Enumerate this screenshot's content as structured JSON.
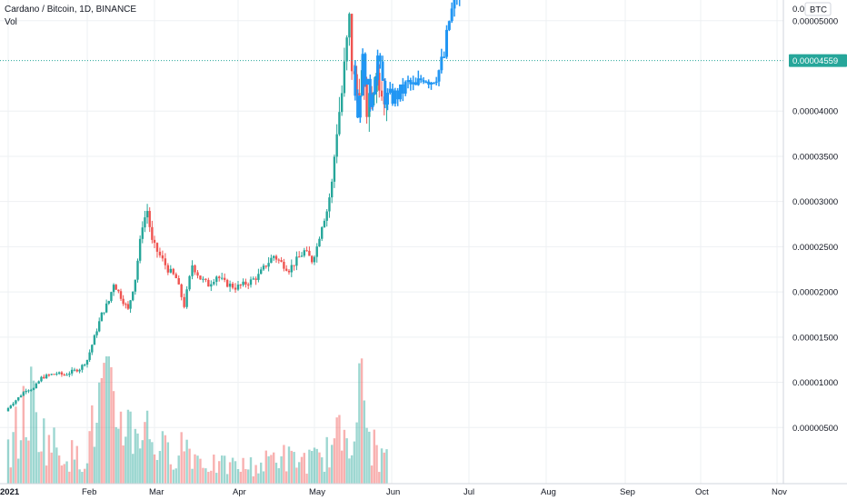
{
  "header": {
    "title": "Cardano / Bitcoin, 1D, BINANCE",
    "volume_label": "Vol"
  },
  "colors": {
    "up": "#26a69a",
    "down": "#ef5350",
    "projection": "#2196f3",
    "price_line": "#26a69a",
    "grid": "#eef0f3",
    "text": "#131722"
  },
  "chart_data": {
    "type": "candlestick",
    "symbol": "Cardano / Bitcoin",
    "interval": "1D",
    "exchange": "BINANCE",
    "currency_badge": "BTC",
    "current_price": 4.559e-05,
    "current_price_label": "0.00004559",
    "y_ticks": [
      "0.00000500",
      "0.00001000",
      "0.00001500",
      "0.00002000",
      "0.00002500",
      "0.00003000",
      "0.00003500",
      "0.00004000",
      "0.00005000"
    ],
    "x_ticks": [
      {
        "label": "2021",
        "date": "2021-01-01",
        "bold": true
      },
      {
        "label": "Feb",
        "date": "2021-02-01",
        "bold": false
      },
      {
        "label": "Mar",
        "date": "2021-03-01",
        "bold": false
      },
      {
        "label": "Apr",
        "date": "2021-04-01",
        "bold": false
      },
      {
        "label": "May",
        "date": "2021-05-01",
        "bold": false
      },
      {
        "label": "Jun",
        "date": "2021-06-01",
        "bold": false
      },
      {
        "label": "Jul",
        "date": "2021-07-01",
        "bold": false
      },
      {
        "label": "Aug",
        "date": "2021-08-01",
        "bold": false
      },
      {
        "label": "Sep",
        "date": "2021-09-01",
        "bold": false
      },
      {
        "label": "Oct",
        "date": "2021-10-01",
        "bold": false
      },
      {
        "label": "Nov",
        "date": "2021-11-01",
        "bold": false
      }
    ],
    "ylim": [
      0,
      5.35e-05
    ],
    "grid": true,
    "price_path": [
      [
        "2021-01-01",
        6.8e-06
      ],
      [
        "2021-01-03",
        7.5e-06
      ],
      [
        "2021-01-06",
        8.3e-06
      ],
      [
        "2021-01-09",
        9.2e-06
      ],
      [
        "2021-01-12",
        9.3e-06
      ],
      [
        "2021-01-15",
        1.05e-05
      ],
      [
        "2021-01-18",
        1.08e-05
      ],
      [
        "2021-01-21",
        1.1e-05
      ],
      [
        "2021-01-24",
        1.08e-05
      ],
      [
        "2021-01-27",
        1.12e-05
      ],
      [
        "2021-01-30",
        1.15e-05
      ],
      [
        "2021-02-02",
        1.25e-05
      ],
      [
        "2021-02-05",
        1.5e-05
      ],
      [
        "2021-02-08",
        1.75e-05
      ],
      [
        "2021-02-11",
        1.9e-05
      ],
      [
        "2021-02-13",
        2.1e-05
      ],
      [
        "2021-02-16",
        1.95e-05
      ],
      [
        "2021-02-19",
        1.8e-05
      ],
      [
        "2021-02-22",
        2.15e-05
      ],
      [
        "2021-02-25",
        2.75e-05
      ],
      [
        "2021-02-27",
        2.9e-05
      ],
      [
        "2021-03-01",
        2.55e-05
      ],
      [
        "2021-03-04",
        2.4e-05
      ],
      [
        "2021-03-07",
        2.25e-05
      ],
      [
        "2021-03-10",
        2.15e-05
      ],
      [
        "2021-03-13",
        1.85e-05
      ],
      [
        "2021-03-16",
        2.3e-05
      ],
      [
        "2021-03-19",
        2.15e-05
      ],
      [
        "2021-03-22",
        2.08e-05
      ],
      [
        "2021-03-25",
        2.18e-05
      ],
      [
        "2021-03-28",
        2.1e-05
      ],
      [
        "2021-04-01",
        2.05e-05
      ],
      [
        "2021-04-04",
        2.08e-05
      ],
      [
        "2021-04-07",
        2.12e-05
      ],
      [
        "2021-04-10",
        2.18e-05
      ],
      [
        "2021-04-13",
        2.3e-05
      ],
      [
        "2021-04-16",
        2.4e-05
      ],
      [
        "2021-04-19",
        2.32e-05
      ],
      [
        "2021-04-22",
        2.25e-05
      ],
      [
        "2021-04-25",
        2.35e-05
      ],
      [
        "2021-04-28",
        2.45e-05
      ],
      [
        "2021-05-01",
        2.35e-05
      ],
      [
        "2021-05-03",
        2.5e-05
      ],
      [
        "2021-05-05",
        2.75e-05
      ],
      [
        "2021-05-07",
        2.9e-05
      ],
      [
        "2021-05-09",
        3.2e-05
      ],
      [
        "2021-05-11",
        3.8e-05
      ],
      [
        "2021-05-13",
        4.2e-05
      ],
      [
        "2021-05-15",
        4.75e-05
      ],
      [
        "2021-05-16",
        5e-05
      ],
      [
        "2021-05-17",
        4.5e-05
      ],
      [
        "2021-05-19",
        4.2e-05
      ],
      [
        "2021-05-21",
        4.4e-05
      ],
      [
        "2021-05-23",
        4e-05
      ],
      [
        "2021-05-25",
        4.2e-05
      ],
      [
        "2021-05-27",
        4.4e-05
      ],
      [
        "2021-05-30",
        4.2e-05
      ]
    ],
    "projection_path": [
      [
        "2021-05-17",
        4.5e-05
      ],
      [
        "2021-05-19",
        3.95e-05
      ],
      [
        "2021-05-21",
        4.55e-05
      ],
      [
        "2021-05-24",
        4.1e-05
      ],
      [
        "2021-05-27",
        4.6e-05
      ],
      [
        "2021-05-30",
        4.15e-05
      ],
      [
        "2021-06-02",
        4.15e-05
      ],
      [
        "2021-06-05",
        4.2e-05
      ],
      [
        "2021-06-08",
        4.3e-05
      ],
      [
        "2021-06-11",
        4.25e-05
      ],
      [
        "2021-06-14",
        4.4e-05
      ],
      [
        "2021-06-17",
        4.35e-05
      ],
      [
        "2021-06-20",
        4.45e-05
      ],
      [
        "2021-06-22",
        4.6e-05
      ],
      [
        "2021-06-24",
        5e-05
      ],
      [
        "2021-06-26",
        5.2e-05
      ],
      [
        "2021-06-28",
        5.35e-05
      ]
    ],
    "volume_series": [
      [
        "2021-01-01",
        0.3
      ],
      [
        "2021-01-05",
        0.45
      ],
      [
        "2021-01-10",
        0.7
      ],
      [
        "2021-01-15",
        0.4
      ],
      [
        "2021-01-20",
        0.3
      ],
      [
        "2021-01-25",
        0.25
      ],
      [
        "2021-01-30",
        0.2
      ],
      [
        "2021-02-04",
        0.5
      ],
      [
        "2021-02-08",
        0.8
      ],
      [
        "2021-02-12",
        0.6
      ],
      [
        "2021-02-16",
        0.55
      ],
      [
        "2021-02-20",
        0.45
      ],
      [
        "2021-02-25",
        0.5
      ],
      [
        "2021-03-01",
        0.35
      ],
      [
        "2021-03-06",
        0.25
      ],
      [
        "2021-03-12",
        0.35
      ],
      [
        "2021-03-18",
        0.2
      ],
      [
        "2021-03-24",
        0.15
      ],
      [
        "2021-03-30",
        0.15
      ],
      [
        "2021-04-05",
        0.15
      ],
      [
        "2021-04-10",
        0.15
      ],
      [
        "2021-04-16",
        0.25
      ],
      [
        "2021-04-22",
        0.2
      ],
      [
        "2021-04-28",
        0.2
      ],
      [
        "2021-05-03",
        0.2
      ],
      [
        "2021-05-08",
        0.3
      ],
      [
        "2021-05-13",
        0.45
      ],
      [
        "2021-05-17",
        0.55
      ],
      [
        "2021-05-20",
        0.75
      ],
      [
        "2021-05-23",
        0.4
      ],
      [
        "2021-05-26",
        0.25
      ],
      [
        "2021-05-30",
        0.2
      ]
    ]
  }
}
